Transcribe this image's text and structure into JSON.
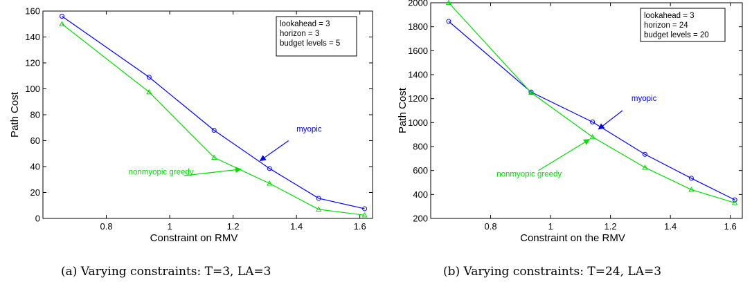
{
  "chart_data": [
    {
      "type": "line",
      "xlabel": "Constraint on RMV",
      "ylabel": "Path Cost",
      "xlim": [
        0.6,
        1.64
      ],
      "ylim": [
        0,
        160
      ],
      "xticks": [
        0.8,
        1,
        1.2,
        1.4,
        1.6
      ],
      "xtick_labels": [
        "0.8",
        "1",
        "1.2",
        "1.4",
        "1.6"
      ],
      "yticks": [
        0,
        20,
        40,
        60,
        80,
        100,
        120,
        140,
        160
      ],
      "ytick_labels": [
        "0",
        "20",
        "40",
        "60",
        "80",
        "100",
        "120",
        "140",
        "160"
      ],
      "grid": false,
      "legend_placement": "top-right",
      "legend": [
        "lookahead = 3",
        "horizon = 3",
        "budget levels = 5"
      ],
      "x": [
        0.66,
        0.935,
        1.14,
        1.315,
        1.47,
        1.615
      ],
      "series": [
        {
          "name": "myopic",
          "marker": "circle",
          "color": "#0000ff",
          "values": [
            156,
            109,
            68,
            38.5,
            15.5,
            7.5
          ]
        },
        {
          "name": "nonmyopic greedy",
          "marker": "triangle",
          "color": "#00dd00",
          "values": [
            150,
            97.5,
            47,
            27,
            7,
            2.5
          ]
        }
      ],
      "annotations": [
        {
          "text": "myopic",
          "color": "#0000ff",
          "text_at": [
            1.4,
            67
          ],
          "arrow_from": [
            1.375,
            60
          ],
          "arrow_to": [
            1.285,
            44.5
          ]
        },
        {
          "text": "nonmyopic greedy",
          "color": "#00dd00",
          "text_at": [
            0.87,
            34
          ],
          "arrow_from": [
            1.045,
            33
          ],
          "arrow_to": [
            1.225,
            38
          ]
        }
      ]
    },
    {
      "type": "line",
      "xlabel": "Constraint on the RMV",
      "ylabel": "Path Cost",
      "xlim": [
        0.6,
        1.64
      ],
      "ylim": [
        200,
        2000
      ],
      "xticks": [
        0.8,
        1,
        1.2,
        1.4,
        1.6
      ],
      "xtick_labels": [
        "0.8",
        "1",
        "1.2",
        "1.4",
        "1.6"
      ],
      "yticks": [
        200,
        400,
        600,
        800,
        1000,
        1200,
        1400,
        1600,
        1800,
        2000
      ],
      "ytick_labels": [
        "200",
        "400",
        "600",
        "800",
        "1000",
        "1200",
        "1400",
        "1600",
        "1800",
        "2000"
      ],
      "grid": false,
      "legend_placement": "top-right",
      "legend": [
        "lookahead = 3",
        "horizon = 24",
        "budget levels = 20"
      ],
      "x": [
        0.66,
        0.935,
        1.14,
        1.315,
        1.47,
        1.615
      ],
      "series": [
        {
          "name": "myopic",
          "marker": "circle",
          "color": "#0000ff",
          "values": [
            1845,
            1255,
            1005,
            735,
            535,
            355
          ]
        },
        {
          "name": "nonmyopic greedy",
          "marker": "triangle",
          "color": "#00dd00",
          "values": [
            2000,
            1250,
            880,
            625,
            440,
            330
          ]
        }
      ],
      "annotations": [
        {
          "text": "myopic",
          "color": "#0000ff",
          "text_at": [
            1.27,
            1180
          ],
          "arrow_from": [
            1.24,
            1100
          ],
          "arrow_to": [
            1.16,
            945
          ]
        },
        {
          "text": "nonmyopic greedy",
          "color": "#00dd00",
          "text_at": [
            0.82,
            550
          ],
          "arrow_from": [
            0.96,
            600
          ],
          "arrow_to": [
            1.13,
            860
          ]
        }
      ]
    }
  ],
  "captions": {
    "a": "(a) Varying constraints: T=3, LA=3",
    "b": "(b) Varying constraints: T=24, LA=3"
  }
}
